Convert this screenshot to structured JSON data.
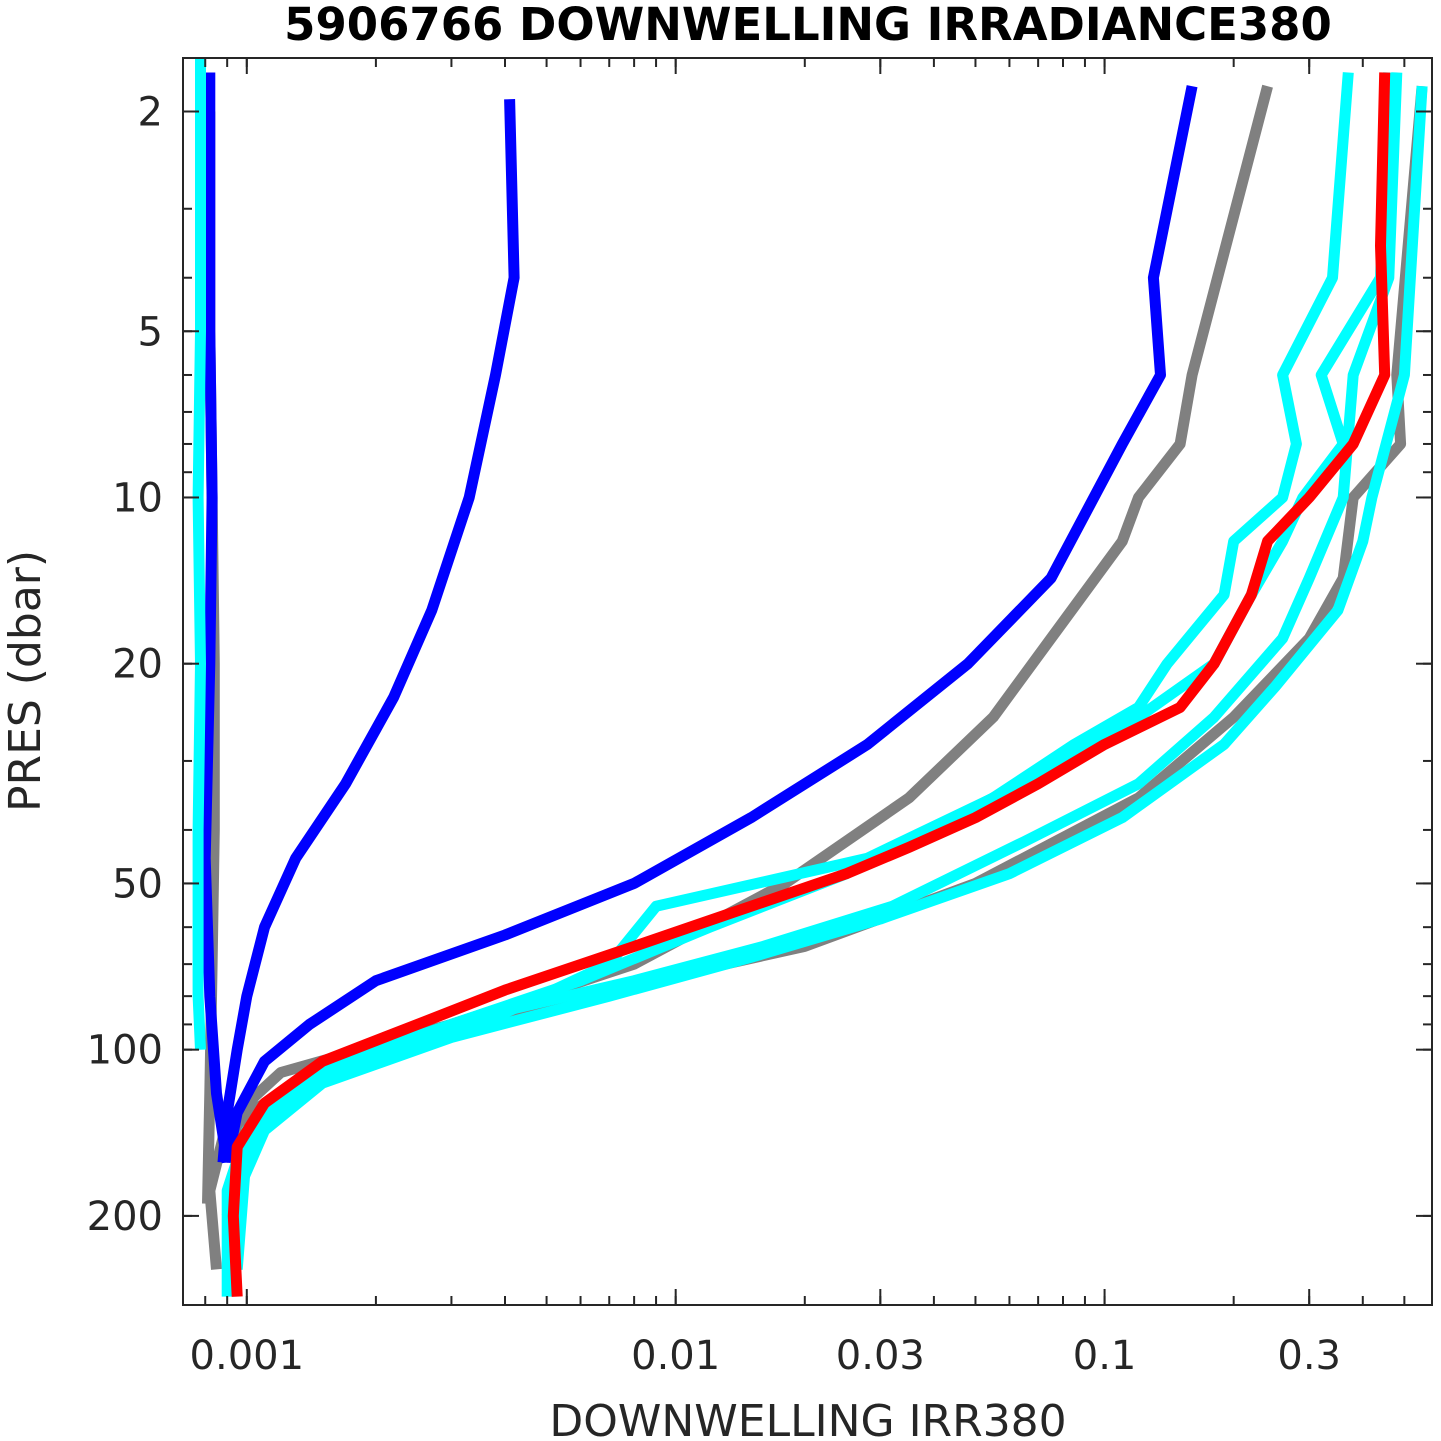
{
  "chart_data": {
    "type": "line",
    "title": "5906766  DOWNWELLING IRRADIANCE380",
    "xlabel": "DOWNWELLING IRR380",
    "ylabel": "PRES (dbar)",
    "x_scale": "log",
    "y_scale": "log",
    "y_reversed": true,
    "xlim": [
      0.00071,
      0.58
    ],
    "ylim": [
      1.6,
      290
    ],
    "grid": false,
    "x_ticks": [
      0.001,
      0.01,
      0.03,
      0.1,
      0.3
    ],
    "x_tick_labels": [
      "0.001",
      "0.01",
      "0.03",
      "0.1",
      "0.3"
    ],
    "y_ticks": [
      2,
      5,
      10,
      20,
      50,
      100,
      200
    ],
    "y_tick_labels": [
      "2",
      "5",
      "10",
      "20",
      "50",
      "100",
      "200"
    ],
    "series": [
      {
        "color": "#808080",
        "points": [
          [
            0.24,
            1.8
          ],
          [
            0.16,
            6
          ],
          [
            0.15,
            8
          ],
          [
            0.12,
            10
          ],
          [
            0.11,
            12
          ],
          [
            0.075,
            18
          ],
          [
            0.055,
            25
          ],
          [
            0.035,
            35
          ],
          [
            0.018,
            50
          ],
          [
            0.008,
            70
          ],
          [
            0.003,
            90
          ],
          [
            0.0012,
            110
          ],
          [
            0.0009,
            135
          ],
          [
            0.00082,
            180
          ],
          [
            0.00085,
            250
          ]
        ]
      },
      {
        "color": "#808080",
        "points": [
          [
            0.55,
            1.8
          ],
          [
            0.48,
            6
          ],
          [
            0.49,
            8
          ],
          [
            0.38,
            10
          ],
          [
            0.36,
            14
          ],
          [
            0.3,
            18
          ],
          [
            0.2,
            25
          ],
          [
            0.12,
            35
          ],
          [
            0.05,
            50
          ],
          [
            0.02,
            65
          ],
          [
            0.006,
            80
          ],
          [
            0.002,
            100
          ],
          [
            0.001,
            130
          ],
          [
            0.0009,
            200
          ]
        ]
      },
      {
        "color": "#808080",
        "points": [
          [
            0.00082,
            2
          ],
          [
            0.00082,
            5
          ],
          [
            0.00083,
            10
          ],
          [
            0.00084,
            20
          ],
          [
            0.00084,
            40
          ],
          [
            0.00083,
            70
          ],
          [
            0.00082,
            120
          ],
          [
            0.00081,
            190
          ]
        ]
      },
      {
        "color": "#0000ff",
        "points": [
          [
            0.00082,
            1.7
          ],
          [
            0.00082,
            5
          ],
          [
            0.00083,
            10
          ],
          [
            0.00082,
            20
          ],
          [
            0.0008,
            45
          ],
          [
            0.00082,
            80
          ],
          [
            0.00085,
            120
          ],
          [
            0.0009,
            160
          ]
        ]
      },
      {
        "color": "#0000ff",
        "points": [
          [
            0.0041,
            1.9
          ],
          [
            0.0042,
            4
          ],
          [
            0.0038,
            6
          ],
          [
            0.0033,
            10
          ],
          [
            0.0027,
            16
          ],
          [
            0.0022,
            23
          ],
          [
            0.0017,
            33
          ],
          [
            0.0013,
            45
          ],
          [
            0.0011,
            60
          ],
          [
            0.001,
            80
          ],
          [
            0.00095,
            100
          ],
          [
            0.0009,
            130
          ],
          [
            0.00088,
            160
          ]
        ]
      },
      {
        "color": "#0000ff",
        "points": [
          [
            0.16,
            1.8
          ],
          [
            0.13,
            4
          ],
          [
            0.135,
            6
          ],
          [
            0.11,
            8
          ],
          [
            0.075,
            14
          ],
          [
            0.048,
            20
          ],
          [
            0.028,
            28
          ],
          [
            0.015,
            38
          ],
          [
            0.008,
            50
          ],
          [
            0.004,
            62
          ],
          [
            0.002,
            75
          ],
          [
            0.0014,
            90
          ],
          [
            0.0011,
            105
          ],
          [
            0.00095,
            130
          ],
          [
            0.0009,
            160
          ]
        ]
      },
      {
        "color": "#00ffff",
        "points": [
          [
            0.00078,
            1.6
          ],
          [
            0.00078,
            5
          ],
          [
            0.00077,
            10
          ],
          [
            0.00078,
            20
          ],
          [
            0.00077,
            40
          ],
          [
            0.00077,
            80
          ],
          [
            0.00078,
            100
          ]
        ]
      },
      {
        "color": "#00ffff",
        "points": [
          [
            0.37,
            1.7
          ],
          [
            0.34,
            4
          ],
          [
            0.26,
            6
          ],
          [
            0.28,
            8
          ],
          [
            0.26,
            10
          ],
          [
            0.2,
            12
          ],
          [
            0.19,
            15
          ],
          [
            0.14,
            20
          ],
          [
            0.12,
            24
          ],
          [
            0.085,
            28
          ],
          [
            0.055,
            35
          ],
          [
            0.028,
            45
          ],
          [
            0.009,
            55
          ],
          [
            0.007,
            70
          ],
          [
            0.0035,
            90
          ],
          [
            0.0015,
            110
          ],
          [
            0.001,
            140
          ],
          [
            0.0009,
            180
          ],
          [
            0.0009,
            280
          ]
        ]
      },
      {
        "color": "#00ffff",
        "points": [
          [
            0.46,
            1.7
          ],
          [
            0.44,
            4
          ],
          [
            0.32,
            6
          ],
          [
            0.36,
            8
          ],
          [
            0.29,
            10
          ],
          [
            0.26,
            12
          ],
          [
            0.22,
            15
          ],
          [
            0.18,
            20
          ],
          [
            0.12,
            25
          ],
          [
            0.08,
            30
          ],
          [
            0.045,
            38
          ],
          [
            0.025,
            48
          ],
          [
            0.012,
            60
          ],
          [
            0.006,
            75
          ],
          [
            0.003,
            90
          ],
          [
            0.0014,
            110
          ],
          [
            0.001,
            140
          ],
          [
            0.00095,
            200
          ]
        ]
      },
      {
        "color": "#00ffff",
        "points": [
          [
            0.48,
            1.7
          ],
          [
            0.46,
            4
          ],
          [
            0.38,
            6
          ],
          [
            0.36,
            10
          ],
          [
            0.3,
            14
          ],
          [
            0.26,
            18
          ],
          [
            0.18,
            25
          ],
          [
            0.12,
            33
          ],
          [
            0.065,
            42
          ],
          [
            0.032,
            55
          ],
          [
            0.016,
            65
          ],
          [
            0.008,
            75
          ],
          [
            0.004,
            85
          ],
          [
            0.002,
            100
          ],
          [
            0.0012,
            120
          ],
          [
            0.001,
            150
          ],
          [
            0.00095,
            250
          ]
        ]
      },
      {
        "color": "#00ffff",
        "points": [
          [
            0.55,
            1.8
          ],
          [
            0.5,
            6
          ],
          [
            0.42,
            10
          ],
          [
            0.4,
            12
          ],
          [
            0.35,
            16
          ],
          [
            0.25,
            22
          ],
          [
            0.19,
            28
          ],
          [
            0.11,
            38
          ],
          [
            0.06,
            48
          ],
          [
            0.03,
            58
          ],
          [
            0.015,
            68
          ],
          [
            0.007,
            80
          ],
          [
            0.003,
            95
          ],
          [
            0.0015,
            115
          ],
          [
            0.0011,
            140
          ],
          [
            0.0009,
            200
          ]
        ]
      },
      {
        "color": "#ff0000",
        "points": [
          [
            0.45,
            1.7
          ],
          [
            0.44,
            3.5
          ],
          [
            0.45,
            6
          ],
          [
            0.38,
            8
          ],
          [
            0.3,
            10
          ],
          [
            0.24,
            12
          ],
          [
            0.22,
            15
          ],
          [
            0.18,
            20
          ],
          [
            0.15,
            24
          ],
          [
            0.1,
            28
          ],
          [
            0.07,
            33
          ],
          [
            0.05,
            38
          ],
          [
            0.035,
            43
          ],
          [
            0.025,
            48
          ],
          [
            0.014,
            56
          ],
          [
            0.008,
            65
          ],
          [
            0.004,
            78
          ],
          [
            0.0025,
            90
          ],
          [
            0.0015,
            105
          ],
          [
            0.0011,
            125
          ],
          [
            0.00095,
            150
          ],
          [
            0.00093,
            200
          ],
          [
            0.00095,
            280
          ]
        ]
      }
    ]
  }
}
